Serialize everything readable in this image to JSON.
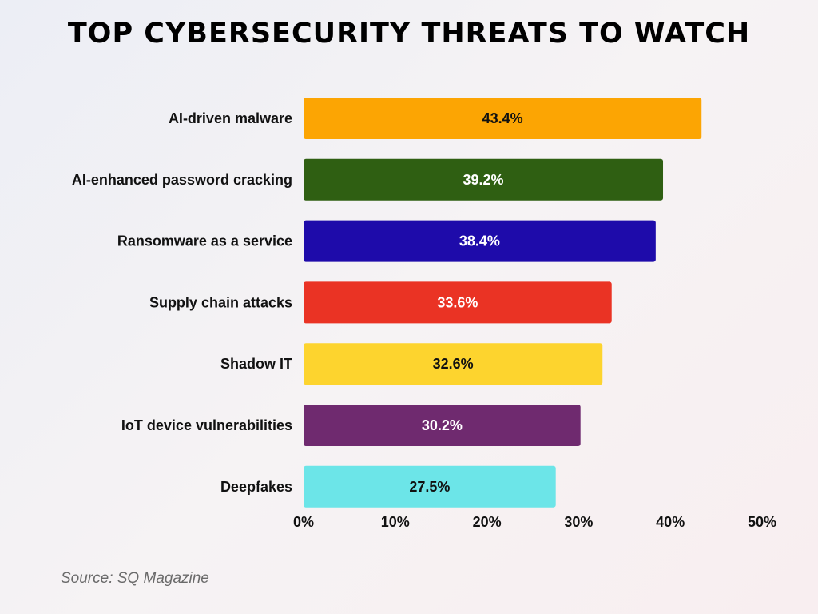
{
  "chart_data": {
    "type": "bar",
    "orientation": "horizontal",
    "title": "TOP CYBERSECURITY THREATS TO WATCH",
    "categories": [
      "AI-driven malware",
      "AI-enhanced password cracking",
      "Ransomware as a service",
      "Supply chain attacks",
      "Shadow IT",
      "IoT device vulnerabilities",
      "Deepfakes"
    ],
    "values": [
      43.4,
      39.2,
      38.4,
      33.6,
      32.6,
      30.2,
      27.5
    ],
    "value_labels": [
      "43.4%",
      "39.2%",
      "38.4%",
      "33.6%",
      "32.6%",
      "30.2%",
      "27.5%"
    ],
    "colors": [
      "#FCA503",
      "#2F5F12",
      "#1E0BAA",
      "#EA3324",
      "#FDD42E",
      "#6F2A6F",
      "#6CE5E8"
    ],
    "label_colors": [
      "#111111",
      "#ffffff",
      "#ffffff",
      "#ffffff",
      "#111111",
      "#ffffff",
      "#111111"
    ],
    "xlim": [
      0,
      50
    ],
    "xticks": [
      "0%",
      "10%",
      "20%",
      "30%",
      "40%",
      "50%"
    ],
    "xlabel": "",
    "ylabel": "",
    "grid": false,
    "source": "Source: SQ Magazine"
  }
}
